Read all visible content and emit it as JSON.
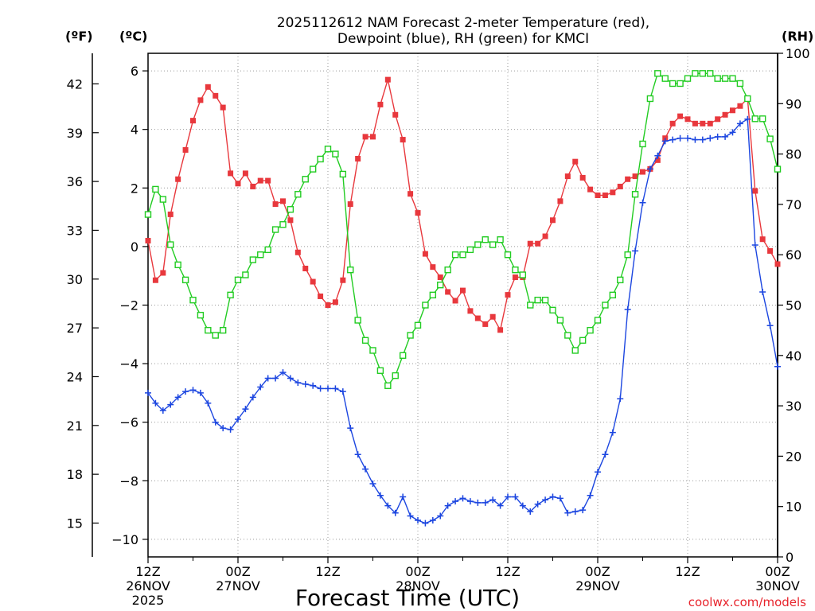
{
  "chart_data": {
    "type": "line",
    "title": "2025112612 NAM Forecast 2-meter Temperature (red),",
    "title_line2": "Dewpoint (blue), RH (green) for KMCI",
    "xlabel": "Forecast Time (UTC)",
    "credit": "coolwx.com/models",
    "units": {
      "fahrenheit": "(ºF)",
      "celsius": "(ºC)",
      "rh": "(RH)"
    },
    "x_range_hours": [
      0,
      84
    ],
    "x_ticks": [
      {
        "hour": 0,
        "line1": "12Z",
        "line2": "26NOV",
        "line3": "2025"
      },
      {
        "hour": 12,
        "line1": "00Z",
        "line2": "27NOV",
        "line3": ""
      },
      {
        "hour": 24,
        "line1": "12Z",
        "line2": "",
        "line3": ""
      },
      {
        "hour": 36,
        "line1": "00Z",
        "line2": "28NOV",
        "line3": ""
      },
      {
        "hour": 48,
        "line1": "12Z",
        "line2": "",
        "line3": ""
      },
      {
        "hour": 60,
        "line1": "00Z",
        "line2": "29NOV",
        "line3": ""
      },
      {
        "hour": 72,
        "line1": "12Z",
        "line2": "",
        "line3": ""
      },
      {
        "hour": 84,
        "line1": "00Z",
        "line2": "30NOV",
        "line3": ""
      }
    ],
    "celsius_range": [
      -10.6,
      6.6
    ],
    "celsius_ticks": [
      "−10",
      "−8",
      "−6",
      "−4",
      "−2",
      "0",
      "2",
      "4",
      "6"
    ],
    "celsius_tick_values": [
      -10,
      -8,
      -6,
      -4,
      -2,
      0,
      2,
      4,
      6
    ],
    "fahrenheit_ticks": [
      "15",
      "18",
      "21",
      "24",
      "27",
      "30",
      "33",
      "36",
      "39",
      "42"
    ],
    "fahrenheit_tick_values": [
      15,
      18,
      21,
      24,
      27,
      30,
      33,
      36,
      39,
      42
    ],
    "rh_range": [
      0,
      100
    ],
    "rh_ticks": [
      "0",
      "10",
      "20",
      "30",
      "40",
      "50",
      "60",
      "70",
      "80",
      "90",
      "100"
    ],
    "rh_tick_values": [
      0,
      10,
      20,
      30,
      40,
      50,
      60,
      70,
      80,
      90,
      100
    ],
    "series": [
      {
        "name": "2-meter Temperature",
        "unit": "C",
        "color": "#e8383d",
        "marker": "filled-square",
        "points": [
          [
            0,
            0.2
          ],
          [
            1,
            -1.15
          ],
          [
            2,
            -0.9
          ],
          [
            3,
            1.1
          ],
          [
            4,
            2.3
          ],
          [
            5,
            3.3
          ],
          [
            6,
            4.3
          ],
          [
            7,
            5.0
          ],
          [
            8,
            5.45
          ],
          [
            9,
            5.15
          ],
          [
            10,
            4.75
          ],
          [
            11,
            2.5
          ],
          [
            12,
            2.15
          ],
          [
            13,
            2.5
          ],
          [
            14,
            2.05
          ],
          [
            15,
            2.25
          ],
          [
            16,
            2.25
          ],
          [
            17,
            1.45
          ],
          [
            18,
            1.55
          ],
          [
            19,
            0.9
          ],
          [
            20,
            -0.2
          ],
          [
            21,
            -0.75
          ],
          [
            22,
            -1.2
          ],
          [
            23,
            -1.7
          ],
          [
            24,
            -2.0
          ],
          [
            25,
            -1.9
          ],
          [
            26,
            -1.15
          ],
          [
            27,
            1.45
          ],
          [
            28,
            3.0
          ],
          [
            29,
            3.75
          ],
          [
            30,
            3.75
          ],
          [
            31,
            4.85
          ],
          [
            32,
            5.7
          ],
          [
            33,
            4.5
          ],
          [
            34,
            3.65
          ],
          [
            35,
            1.8
          ],
          [
            36,
            1.15
          ],
          [
            37,
            -0.25
          ],
          [
            38,
            -0.7
          ],
          [
            39,
            -1.05
          ],
          [
            40,
            -1.55
          ],
          [
            41,
            -1.85
          ],
          [
            42,
            -1.5
          ],
          [
            43,
            -2.2
          ],
          [
            44,
            -2.45
          ],
          [
            45,
            -2.65
          ],
          [
            46,
            -2.4
          ],
          [
            47,
            -2.85
          ],
          [
            48,
            -1.65
          ],
          [
            49,
            -1.05
          ],
          [
            50,
            -1.05
          ],
          [
            51,
            0.1
          ],
          [
            52,
            0.1
          ],
          [
            53,
            0.35
          ],
          [
            54,
            0.9
          ],
          [
            55,
            1.55
          ],
          [
            56,
            2.4
          ],
          [
            57,
            2.9
          ],
          [
            58,
            2.35
          ],
          [
            59,
            1.95
          ],
          [
            60,
            1.75
          ],
          [
            61,
            1.75
          ],
          [
            62,
            1.85
          ],
          [
            63,
            2.05
          ],
          [
            64,
            2.3
          ],
          [
            65,
            2.4
          ],
          [
            66,
            2.55
          ],
          [
            67,
            2.65
          ],
          [
            68,
            2.95
          ],
          [
            69,
            3.7
          ],
          [
            70,
            4.2
          ],
          [
            71,
            4.45
          ],
          [
            72,
            4.35
          ],
          [
            73,
            4.2
          ],
          [
            74,
            4.2
          ],
          [
            75,
            4.2
          ],
          [
            76,
            4.35
          ],
          [
            77,
            4.5
          ],
          [
            78,
            4.65
          ],
          [
            79,
            4.8
          ],
          [
            80,
            5.05
          ],
          [
            81,
            1.9
          ],
          [
            82,
            0.25
          ],
          [
            83,
            -0.15
          ],
          [
            84,
            -0.6
          ]
        ]
      },
      {
        "name": "Dewpoint",
        "unit": "C",
        "color": "#1c46e0",
        "marker": "plus",
        "points": [
          [
            0,
            -5.0
          ],
          [
            1,
            -5.35
          ],
          [
            2,
            -5.6
          ],
          [
            3,
            -5.4
          ],
          [
            4,
            -5.15
          ],
          [
            5,
            -4.95
          ],
          [
            6,
            -4.9
          ],
          [
            7,
            -5.0
          ],
          [
            8,
            -5.35
          ],
          [
            9,
            -6.0
          ],
          [
            10,
            -6.2
          ],
          [
            11,
            -6.25
          ],
          [
            12,
            -5.9
          ],
          [
            13,
            -5.55
          ],
          [
            14,
            -5.15
          ],
          [
            15,
            -4.8
          ],
          [
            16,
            -4.5
          ],
          [
            17,
            -4.5
          ],
          [
            18,
            -4.3
          ],
          [
            19,
            -4.5
          ],
          [
            20,
            -4.65
          ],
          [
            21,
            -4.7
          ],
          [
            22,
            -4.75
          ],
          [
            23,
            -4.85
          ],
          [
            24,
            -4.85
          ],
          [
            25,
            -4.85
          ],
          [
            26,
            -4.95
          ],
          [
            27,
            -6.2
          ],
          [
            28,
            -7.1
          ],
          [
            29,
            -7.6
          ],
          [
            30,
            -8.1
          ],
          [
            31,
            -8.5
          ],
          [
            32,
            -8.85
          ],
          [
            33,
            -9.1
          ],
          [
            34,
            -8.55
          ],
          [
            35,
            -9.2
          ],
          [
            36,
            -9.35
          ],
          [
            37,
            -9.45
          ],
          [
            38,
            -9.35
          ],
          [
            39,
            -9.2
          ],
          [
            40,
            -8.85
          ],
          [
            41,
            -8.7
          ],
          [
            42,
            -8.6
          ],
          [
            43,
            -8.7
          ],
          [
            44,
            -8.75
          ],
          [
            45,
            -8.75
          ],
          [
            46,
            -8.65
          ],
          [
            47,
            -8.85
          ],
          [
            48,
            -8.55
          ],
          [
            49,
            -8.55
          ],
          [
            50,
            -8.85
          ],
          [
            51,
            -9.05
          ],
          [
            52,
            -8.8
          ],
          [
            53,
            -8.65
          ],
          [
            54,
            -8.55
          ],
          [
            55,
            -8.6
          ],
          [
            56,
            -9.1
          ],
          [
            57,
            -9.05
          ],
          [
            58,
            -9.0
          ],
          [
            59,
            -8.5
          ],
          [
            60,
            -7.7
          ],
          [
            61,
            -7.1
          ],
          [
            62,
            -6.35
          ],
          [
            63,
            -5.2
          ],
          [
            64,
            -2.15
          ],
          [
            65,
            -0.15
          ],
          [
            66,
            1.5
          ],
          [
            67,
            2.65
          ],
          [
            68,
            3.1
          ],
          [
            69,
            3.6
          ],
          [
            70,
            3.65
          ],
          [
            71,
            3.7
          ],
          [
            72,
            3.7
          ],
          [
            73,
            3.65
          ],
          [
            74,
            3.65
          ],
          [
            75,
            3.7
          ],
          [
            76,
            3.75
          ],
          [
            77,
            3.75
          ],
          [
            78,
            3.9
          ],
          [
            79,
            4.2
          ],
          [
            80,
            4.35
          ],
          [
            81,
            0.05
          ],
          [
            82,
            -1.55
          ],
          [
            83,
            -2.7
          ],
          [
            84,
            -4.1
          ]
        ]
      },
      {
        "name": "RH",
        "unit": "%",
        "color": "#22cc22",
        "marker": "open-square",
        "points": [
          [
            0,
            68
          ],
          [
            1,
            73
          ],
          [
            2,
            71
          ],
          [
            3,
            62
          ],
          [
            4,
            58
          ],
          [
            5,
            55
          ],
          [
            6,
            51
          ],
          [
            7,
            48
          ],
          [
            8,
            45
          ],
          [
            9,
            44
          ],
          [
            10,
            45
          ],
          [
            11,
            52
          ],
          [
            12,
            55
          ],
          [
            13,
            56
          ],
          [
            14,
            59
          ],
          [
            15,
            60
          ],
          [
            16,
            61
          ],
          [
            17,
            65
          ],
          [
            18,
            66
          ],
          [
            19,
            69
          ],
          [
            20,
            72
          ],
          [
            21,
            75
          ],
          [
            22,
            77
          ],
          [
            23,
            79
          ],
          [
            24,
            81
          ],
          [
            25,
            80
          ],
          [
            26,
            76
          ],
          [
            27,
            57
          ],
          [
            28,
            47
          ],
          [
            29,
            43
          ],
          [
            30,
            41
          ],
          [
            31,
            37
          ],
          [
            32,
            34
          ],
          [
            33,
            36
          ],
          [
            34,
            40
          ],
          [
            35,
            44
          ],
          [
            36,
            46
          ],
          [
            37,
            50
          ],
          [
            38,
            52
          ],
          [
            39,
            54
          ],
          [
            40,
            57
          ],
          [
            41,
            60
          ],
          [
            42,
            60
          ],
          [
            43,
            61
          ],
          [
            44,
            62
          ],
          [
            45,
            63
          ],
          [
            46,
            62
          ],
          [
            47,
            63
          ],
          [
            48,
            60
          ],
          [
            49,
            57
          ],
          [
            50,
            56
          ],
          [
            51,
            50
          ],
          [
            52,
            51
          ],
          [
            53,
            51
          ],
          [
            54,
            49
          ],
          [
            55,
            47
          ],
          [
            56,
            44
          ],
          [
            57,
            41
          ],
          [
            58,
            43
          ],
          [
            59,
            45
          ],
          [
            60,
            47
          ],
          [
            61,
            50
          ],
          [
            62,
            52
          ],
          [
            63,
            55
          ],
          [
            64,
            60
          ],
          [
            65,
            72
          ],
          [
            66,
            82
          ],
          [
            67,
            91
          ],
          [
            68,
            96
          ],
          [
            69,
            95
          ],
          [
            70,
            94
          ],
          [
            71,
            94
          ],
          [
            72,
            95
          ],
          [
            73,
            96
          ],
          [
            74,
            96
          ],
          [
            75,
            96
          ],
          [
            76,
            95
          ],
          [
            77,
            95
          ],
          [
            78,
            95
          ],
          [
            79,
            94
          ],
          [
            80,
            91
          ],
          [
            81,
            87
          ],
          [
            82,
            87
          ],
          [
            83,
            83
          ],
          [
            84,
            77
          ]
        ]
      }
    ]
  }
}
